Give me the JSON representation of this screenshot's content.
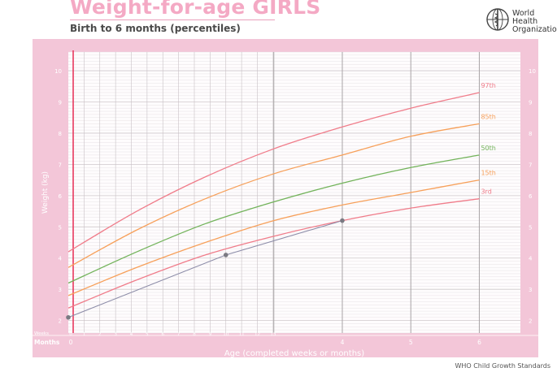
{
  "header": {
    "title": "Weight-for-age GIRLS",
    "subtitle": "Birth to 6 months (percentiles)",
    "org_line1": "World Health",
    "org_line2": "Organization",
    "logo_icon": "who-emblem-icon"
  },
  "footer": {
    "text": "WHO Child Growth Standards"
  },
  "colors": {
    "frame": "#f3c6d8",
    "plot_background": "#fefcfd",
    "grid_minor": "#e2dcdf",
    "grid_major": "#a8a4a6",
    "birth_line": "#e8385e",
    "p97": "#f07c8a",
    "p85": "#f7a05a",
    "p50": "#72b35a",
    "p15": "#f7a05a",
    "p3": "#f07c8a",
    "child_curve": "#8c8ca8",
    "child_point": "#7a7a82",
    "title": "#f4a9c4",
    "axis_text": "#ffffff"
  },
  "chart_data": {
    "type": "line",
    "title": "Weight-for-age GIRLS",
    "subtitle": "Birth to 6 months (percentiles)",
    "xlabel": "Age (completed weeks or months)",
    "ylabel": "Weight (kg)",
    "x_unit": "months",
    "xlim": [
      0,
      6.6
    ],
    "ylim": [
      1.6,
      10.6
    ],
    "grid": true,
    "legend": "right-edge labels",
    "y_ticks": [
      2,
      3,
      4,
      5,
      6,
      7,
      8,
      9,
      10
    ],
    "y_ticks_right": [
      2,
      3,
      4,
      5,
      6,
      7,
      8,
      9,
      10
    ],
    "weeks_row_label": "Weeks",
    "months_row_label": "Months",
    "week_ticks": [
      0,
      1,
      2,
      3,
      4,
      5,
      6,
      7,
      8,
      9,
      10,
      11,
      12,
      13
    ],
    "month_ticks": [
      0,
      4,
      5,
      6
    ],
    "month_tick_labels": [
      "0",
      "",
      "",
      "",
      "4",
      "5",
      "6"
    ],
    "series": [
      {
        "name": "97th",
        "x": [
          0,
          1,
          2,
          3,
          4,
          5,
          6
        ],
        "values": [
          4.2,
          5.5,
          6.6,
          7.5,
          8.2,
          8.8,
          9.3
        ]
      },
      {
        "name": "85th",
        "x": [
          0,
          1,
          2,
          3,
          4,
          5,
          6
        ],
        "values": [
          3.7,
          4.9,
          5.9,
          6.7,
          7.3,
          7.9,
          8.3
        ]
      },
      {
        "name": "50th",
        "x": [
          0,
          1,
          2,
          3,
          4,
          5,
          6
        ],
        "values": [
          3.2,
          4.2,
          5.1,
          5.8,
          6.4,
          6.9,
          7.3
        ]
      },
      {
        "name": "15th",
        "x": [
          0,
          1,
          2,
          3,
          4,
          5,
          6
        ],
        "values": [
          2.8,
          3.7,
          4.5,
          5.2,
          5.7,
          6.1,
          6.5
        ]
      },
      {
        "name": "3rd",
        "x": [
          0,
          1,
          2,
          3,
          4,
          5,
          6
        ],
        "values": [
          2.4,
          3.3,
          4.1,
          4.7,
          5.2,
          5.6,
          5.9
        ]
      }
    ],
    "child_measurements": {
      "x": [
        0,
        2.3,
        4
      ],
      "values": [
        2.1,
        4.1,
        5.2
      ]
    }
  }
}
